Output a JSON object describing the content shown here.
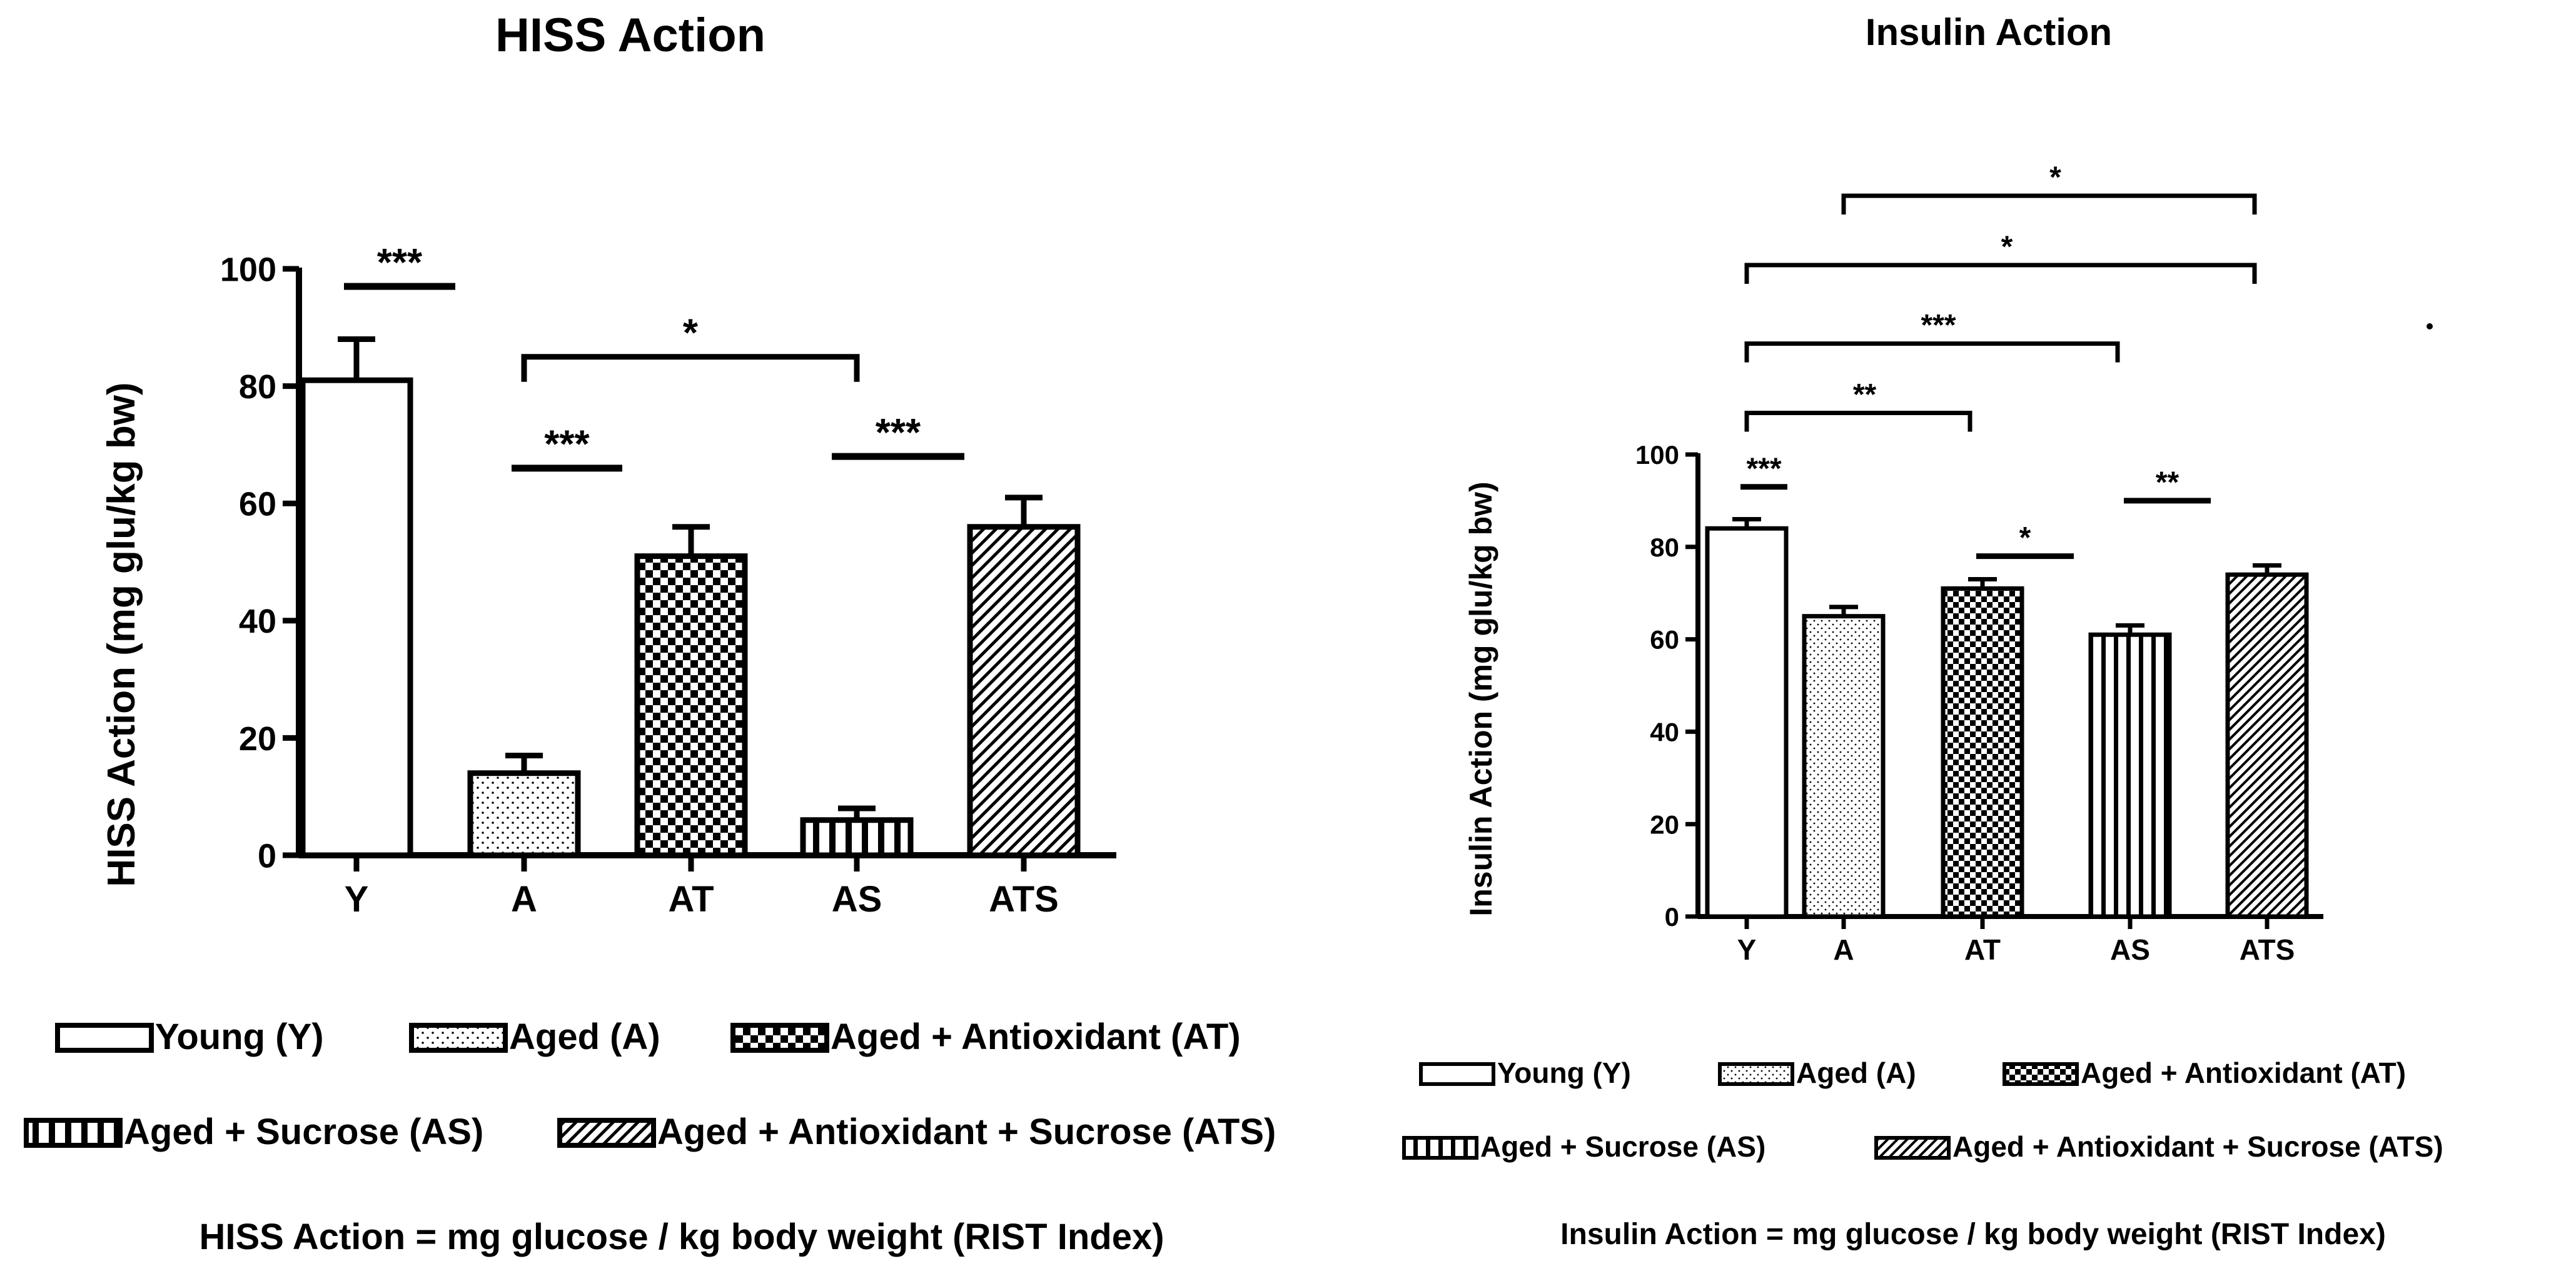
{
  "chart_data": [
    {
      "type": "bar",
      "title": "HISS Action",
      "ylabel": "HISS Action (mg glu/kg bw)",
      "xlabel": "",
      "categories": [
        "Y",
        "A",
        "AT",
        "AS",
        "ATS"
      ],
      "values": [
        81,
        14,
        51,
        6,
        56
      ],
      "errors": [
        7,
        3,
        5,
        2,
        5
      ],
      "ylim": [
        0,
        100
      ],
      "yticks": [
        "0",
        "20",
        "40",
        "60",
        "80",
        "100"
      ],
      "patterns": [
        "none",
        "dots",
        "checker",
        "vlines",
        "diag"
      ],
      "significance": [
        {
          "from": 0,
          "to": 1,
          "label": "***",
          "y": 97,
          "style": "line"
        },
        {
          "from": 1,
          "to": 3,
          "label": "*",
          "y": 85,
          "style": "bracket"
        },
        {
          "from": 1,
          "to": 2,
          "label": "***",
          "y": 66,
          "style": "line"
        },
        {
          "from": 3,
          "to": 4,
          "label": "***",
          "y": 68,
          "style": "line"
        }
      ],
      "legend": [
        "Young (Y)",
        "Aged (A)",
        "Aged + Antioxidant (AT)",
        "Aged + Sucrose (AS)",
        "Aged + Antioxidant + Sucrose (ATS)"
      ],
      "note": "HISS Action = mg glucose / kg body weight (RIST Index)"
    },
    {
      "type": "bar",
      "title": "Insulin Action",
      "ylabel": "Insulin Action (mg glu/kg bw)",
      "xlabel": "",
      "categories": [
        "Y",
        "A",
        "AT",
        "AS",
        "ATS"
      ],
      "values": [
        84,
        65,
        71,
        61,
        74
      ],
      "errors": [
        2,
        2,
        2,
        2,
        2
      ],
      "ylim": [
        0,
        100
      ],
      "yticks": [
        "0",
        "20",
        "40",
        "60",
        "80",
        "100"
      ],
      "patterns": [
        "none",
        "dots",
        "checker",
        "vlines",
        "diag"
      ],
      "significance": [
        {
          "from": 1,
          "to": 4,
          "label": "*",
          "y": 156,
          "style": "bracket"
        },
        {
          "from": 0,
          "to": 4,
          "label": "*",
          "y": 141,
          "style": "bracket"
        },
        {
          "from": 0,
          "to": 3,
          "label": "***",
          "y": 124,
          "style": "bracket"
        },
        {
          "from": 0,
          "to": 2,
          "label": "**",
          "y": 109,
          "style": "bracket"
        },
        {
          "from": 0,
          "to": 1,
          "label": "***",
          "y": 93,
          "style": "line"
        },
        {
          "from": 2,
          "to": 3,
          "label": "*",
          "y": 78,
          "style": "line"
        },
        {
          "from": 3,
          "to": 4,
          "label": "**",
          "y": 90,
          "style": "line"
        }
      ],
      "legend": [
        "Young (Y)",
        "Aged (A)",
        "Aged + Antioxidant (AT)",
        "Aged + Sucrose (AS)",
        "Aged + Antioxidant + Sucrose (ATS)"
      ],
      "note": "Insulin Action = mg glucose / kg body weight (RIST Index)"
    }
  ]
}
